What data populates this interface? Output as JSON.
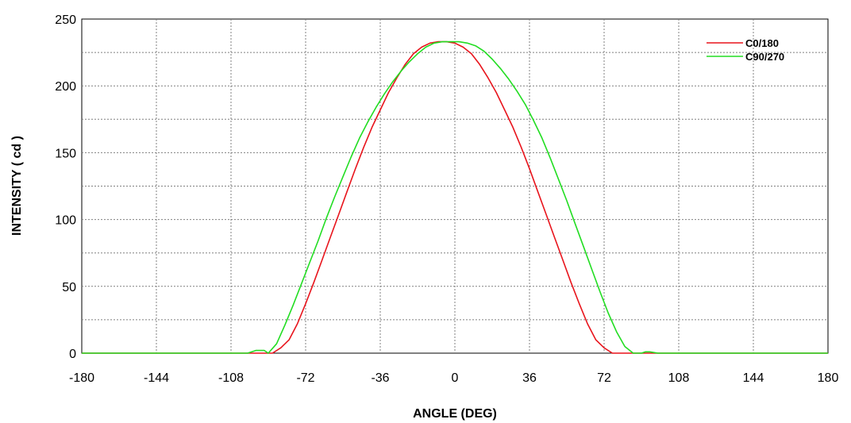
{
  "chart_data": {
    "type": "line",
    "title": "",
    "xlabel": "ANGLE (DEG)",
    "ylabel": "INTENSITY ( cd )",
    "xlim": [
      -180,
      180
    ],
    "ylim": [
      0,
      250
    ],
    "xticks": [
      -180,
      -144,
      -108,
      -72,
      -36,
      0,
      36,
      72,
      108,
      144,
      180
    ],
    "yticks": [
      0,
      50,
      100,
      150,
      200,
      250
    ],
    "grid": true,
    "legend": "top-right",
    "series": [
      {
        "name": "C0/180",
        "color": "#e8141c",
        "x": [
          -180,
          -90,
          -88,
          -84,
          -80,
          -76,
          -72,
          -68,
          -64,
          -60,
          -56,
          -52,
          -48,
          -44,
          -40,
          -36,
          -32,
          -28,
          -24,
          -20,
          -16,
          -12,
          -8,
          -4,
          0,
          4,
          8,
          12,
          16,
          20,
          24,
          28,
          32,
          36,
          40,
          44,
          48,
          52,
          56,
          60,
          64,
          68,
          72,
          76,
          80,
          84,
          88,
          180
        ],
        "y": [
          0,
          0,
          0,
          4,
          10,
          22,
          37,
          53,
          70,
          87,
          104,
          121,
          138,
          154,
          169,
          182,
          195,
          206,
          216,
          224,
          229,
          232,
          233,
          233,
          232,
          229,
          224,
          216,
          206,
          195,
          182,
          169,
          154,
          138,
          121,
          104,
          87,
          70,
          53,
          37,
          22,
          10,
          4,
          0,
          0,
          0,
          0,
          0
        ]
      },
      {
        "name": "C90/270",
        "color": "#22dd22",
        "x": [
          -180,
          -100,
          -96,
          -92,
          -90,
          -86,
          -82,
          -78,
          -74,
          -70,
          -66,
          -62,
          -58,
          -54,
          -50,
          -46,
          -42,
          -38,
          -34,
          -30,
          -26,
          -22,
          -18,
          -14,
          -10,
          -6,
          -2,
          0,
          2,
          6,
          10,
          14,
          18,
          22,
          26,
          30,
          34,
          38,
          42,
          46,
          50,
          54,
          58,
          62,
          66,
          70,
          74,
          78,
          82,
          86,
          90,
          92,
          94,
          98,
          180
        ],
        "y": [
          0,
          0,
          2,
          2,
          0,
          7,
          21,
          36,
          52,
          68,
          84,
          101,
          117,
          132,
          147,
          161,
          173,
          184,
          194,
          203,
          211,
          218,
          224,
          229,
          232,
          233,
          233,
          233,
          233,
          232,
          230,
          226,
          220,
          213,
          205,
          196,
          186,
          174,
          161,
          146,
          130,
          114,
          97,
          80,
          63,
          46,
          30,
          16,
          5,
          0,
          0,
          1,
          1,
          0,
          0
        ]
      }
    ]
  }
}
